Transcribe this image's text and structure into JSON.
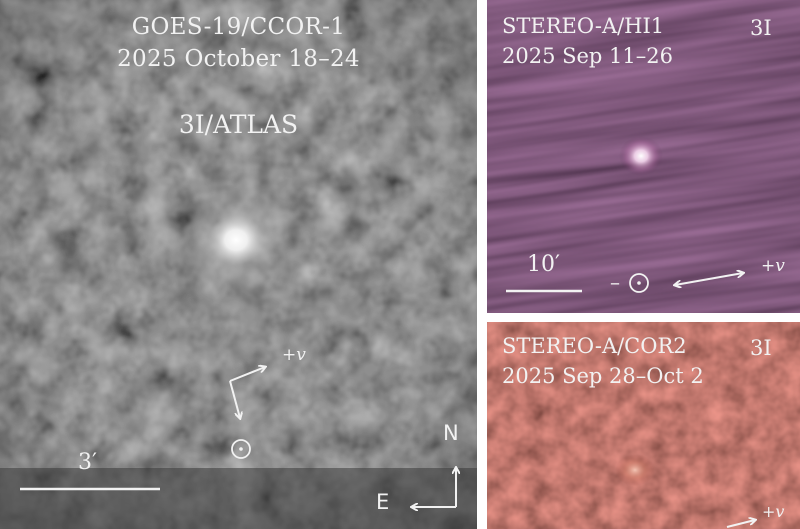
{
  "main_panel": {
    "title_line1": "GOES-19/CCOR-1",
    "title_line2": "2025 October 18–24",
    "object_name": "3I/ATLAS",
    "scale_label": "3′",
    "velocity_label": "+v",
    "north_label": "N",
    "east_label": "E"
  },
  "hi1_panel": {
    "title_line1": "STEREO-A/HI1",
    "title_line2": "2025 Sep 11–26",
    "tag": "3I",
    "scale_label": "10′",
    "minus_label": "–",
    "velocity_label": "+v"
  },
  "cor2_panel": {
    "title_line1": "STEREO-A/COR2",
    "title_line2": "2025 Sep 28–Oct 2",
    "tag": "3I",
    "velocity_label": "+v"
  },
  "colors": {
    "main_background": "#4a4a4a",
    "hi1_background": "#3a2137",
    "cor2_background": "#8a3a30",
    "annotation": "#f2f2f2"
  },
  "icons": {
    "sun_symbol": "sun-symbol-icon",
    "velocity_arrow": "velocity-arrow-icon",
    "compass": "compass-arrows-icon"
  }
}
